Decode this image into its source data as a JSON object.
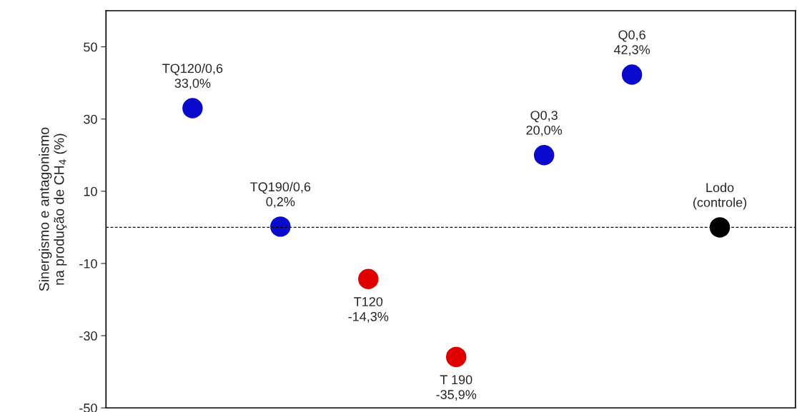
{
  "chart_data": {
    "type": "scatter",
    "ylabel": "Sinergismo e antagonismo\nna produção de CH$_{4}$ (%)",
    "categories": [
      null,
      null,
      null,
      null,
      null,
      null,
      null
    ],
    "values": [
      33.0,
      0.2,
      -14.3,
      -35.9,
      20.0,
      42.3,
      0
    ],
    "colors": [
      "#0a0acc",
      "#0a0acc",
      "#e00000",
      "#e00000",
      "#0a0acc",
      "#0a0acc",
      "#000000"
    ],
    "value_labels": [
      "TQ120/0,6\n33,0%",
      "TQ190/0,6\n0,2%",
      "T120\n-14,3%",
      "T 190\n-35,9%",
      "Q0,3\n20,0%",
      "Q0,6\n42,3%",
      "Lodo\n(controle)"
    ],
    "ylim": [
      -50,
      60
    ],
    "yticks": [
      -50,
      -30,
      -10,
      10,
      30,
      50
    ],
    "ref_lines": [
      {
        "axis": "y",
        "value": 0,
        "color": "#000000",
        "line_style": "dashed"
      }
    ],
    "marker": "circle",
    "grid": false,
    "legend": false
  }
}
